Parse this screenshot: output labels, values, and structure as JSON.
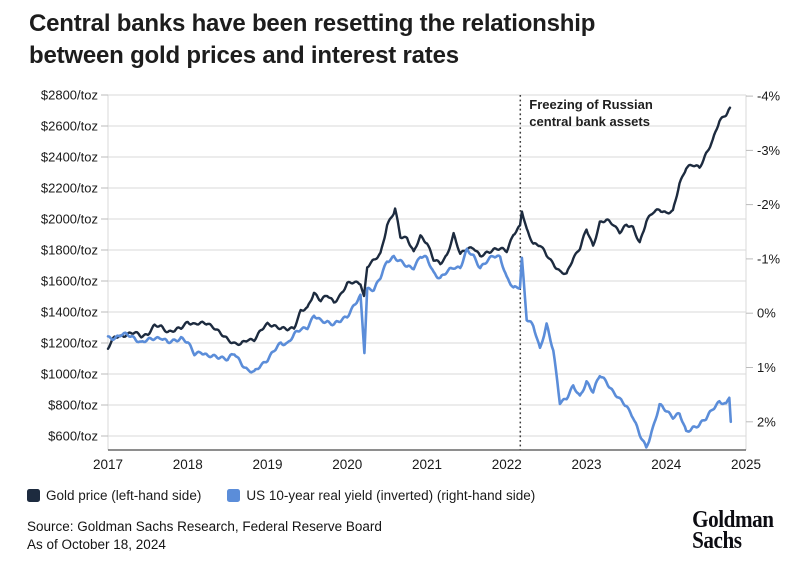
{
  "title": {
    "lines": [
      "Central banks have been resetting the relationship",
      "between gold prices and interest rates"
    ]
  },
  "source": {
    "line1": "Source: Goldman Sachs Research, Federal Reserve Board",
    "line2": "As of October 18, 2024"
  },
  "branding": {
    "line1": "Goldman",
    "line2": "Sachs"
  },
  "colors": {
    "gold_line": "#1d2b3f",
    "yield_line": "#5b8dd9",
    "grid": "#dadada",
    "axis": "#4a4a4a",
    "event_line": "#3c3c3c",
    "text": "#1a1a1a"
  },
  "chart_data": {
    "type": "line",
    "title": "Central banks have been resetting the relationship between gold prices and interest rates",
    "grid": true,
    "legend_position": "bottom",
    "x_axis": {
      "range": [
        2017,
        2025
      ],
      "tick_values": [
        2017,
        2018,
        2019,
        2020,
        2021,
        2022,
        2023,
        2024,
        2025
      ],
      "tick_labels": [
        "2017",
        "2018",
        "2019",
        "2020",
        "2021",
        "2022",
        "2023",
        "2024",
        "2025"
      ]
    },
    "left_axis": {
      "name": "Gold price",
      "range": [
        510,
        2800
      ],
      "tick_values": [
        2800,
        2600,
        2400,
        2200,
        2000,
        1800,
        1600,
        1400,
        1200,
        1000,
        800,
        600
      ],
      "tick_labels": [
        "$2800/toz",
        "$2600/toz",
        "$2400/toz",
        "$2200/toz",
        "$2000/toz",
        "$1800/toz",
        "$1600/toz",
        "$1400/toz",
        "$1200/toz",
        "$1000/toz",
        "$800/toz",
        "$600/toz"
      ]
    },
    "right_axis": {
      "name": "US 10-year real yield (inverted)",
      "inverted": true,
      "range": [
        2.52,
        -4.02
      ],
      "tick_values": [
        -4,
        -3,
        -2,
        -1,
        0,
        1,
        2
      ],
      "tick_labels": [
        "-4%",
        "-3%",
        "-2%",
        "-1%",
        "0%",
        "1%",
        "2%"
      ]
    },
    "annotation": {
      "x": 2022.17,
      "lines": [
        "Freezing of Russian",
        "central bank assets"
      ]
    },
    "series": [
      {
        "name": "Gold price",
        "legend_label": "Gold price (left-hand side)",
        "axis": "left",
        "unit": "$/toz",
        "color": "#1d2b3f",
        "start_x": 2017.0,
        "step_x": 0.0833333,
        "values": [
          1170,
          1235,
          1245,
          1260,
          1265,
          1245,
          1260,
          1310,
          1305,
          1275,
          1280,
          1295,
          1340,
          1320,
          1325,
          1330,
          1300,
          1255,
          1225,
          1200,
          1190,
          1220,
          1225,
          1280,
          1320,
          1315,
          1295,
          1285,
          1300,
          1410,
          1420,
          1525,
          1480,
          1505,
          1460,
          1515,
          1580,
          1590,
          1590,
          1690,
          1730,
          1780,
          1960,
          2035,
          1890,
          1880,
          1780,
          1890,
          1850,
          1735,
          1710,
          1770,
          1900,
          1770,
          1815,
          1815,
          1755,
          1785,
          1805,
          1805,
          1795,
          1905,
          1950,
          1930,
          1845,
          1830,
          1765,
          1715,
          1660,
          1640,
          1750,
          1815,
          1930,
          1825,
          1980,
          1990,
          1965,
          1920,
          1960,
          1940,
          1850,
          1985,
          2040,
          2065,
          2040,
          2045,
          2230,
          2335,
          2345,
          2330,
          2425,
          2505,
          2630,
          2680
        ],
        "extra_points": [
          [
            2020.21,
            1500
          ],
          [
            2020.6,
            2063
          ],
          [
            2022.19,
            2048
          ],
          [
            2024.8,
            2718
          ]
        ]
      },
      {
        "name": "US 10-year real yield (inverted)",
        "legend_label": "US 10-year real yield (inverted) (right-hand side)",
        "axis": "right",
        "unit": "%",
        "color": "#5b8dd9",
        "start_x": 2017.0,
        "step_x": 0.0833333,
        "values": [
          0.45,
          0.45,
          0.4,
          0.4,
          0.45,
          0.55,
          0.5,
          0.45,
          0.45,
          0.55,
          0.5,
          0.45,
          0.55,
          0.75,
          0.7,
          0.8,
          0.8,
          0.8,
          0.85,
          0.75,
          0.9,
          1.05,
          1.1,
          0.95,
          0.85,
          0.7,
          0.55,
          0.55,
          0.4,
          0.3,
          0.25,
          0.05,
          0.15,
          0.15,
          0.2,
          0.15,
          0.05,
          -0.15,
          -0.3,
          -0.45,
          -0.45,
          -0.65,
          -0.95,
          -1.05,
          -0.95,
          -0.85,
          -0.85,
          -1.05,
          -1.0,
          -0.75,
          -0.65,
          -0.75,
          -0.85,
          -0.85,
          -1.15,
          -1.05,
          -0.85,
          -0.95,
          -1.05,
          -1.05,
          -0.65,
          -0.45,
          -0.5,
          0.1,
          0.25,
          0.65,
          0.2,
          0.7,
          1.65,
          1.55,
          1.35,
          1.55,
          1.25,
          1.45,
          1.15,
          1.25,
          1.45,
          1.6,
          1.7,
          1.9,
          2.25,
          2.48,
          2.1,
          1.7,
          1.8,
          1.9,
          1.85,
          2.2,
          2.1,
          2.05,
          1.95,
          1.75,
          1.62,
          1.7
        ],
        "extra_points": [
          [
            2020.215,
            0.72
          ],
          [
            2022.19,
            -1.02
          ],
          [
            2024.79,
            1.55
          ],
          [
            2024.81,
            2.0
          ]
        ]
      }
    ]
  }
}
